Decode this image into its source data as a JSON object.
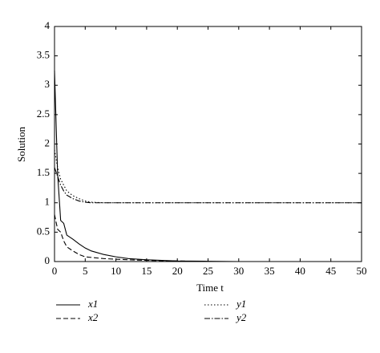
{
  "chart_data": {
    "type": "line",
    "xlabel": "Time t",
    "ylabel": "Solution",
    "x": [
      0,
      0.5,
      1,
      1.5,
      2,
      3,
      4,
      5,
      6,
      8,
      10,
      12,
      15,
      20,
      25,
      30,
      40,
      50
    ],
    "series": [
      {
        "name": "x1",
        "color": "#000000",
        "dash": "none",
        "values": [
          3.25,
          1.5,
          0.7,
          0.65,
          0.45,
          0.38,
          0.3,
          0.23,
          0.18,
          0.12,
          0.08,
          0.05,
          0.03,
          0.01,
          0.005,
          0,
          0,
          0
        ]
      },
      {
        "name": "y1",
        "color": "#000000",
        "dash": "1.5,2.5",
        "values": [
          1.9,
          1.6,
          1.4,
          1.3,
          1.2,
          1.12,
          1.07,
          1.03,
          1.01,
          1,
          1,
          1,
          1,
          1,
          1,
          1,
          1,
          1
        ]
      },
      {
        "name": "x2",
        "color": "#000000",
        "dash": "6,3",
        "values": [
          0.8,
          0.55,
          0.5,
          0.35,
          0.25,
          0.18,
          0.12,
          0.08,
          0.07,
          0.05,
          0.04,
          0.03,
          0.02,
          0.01,
          0,
          0,
          0,
          0
        ]
      },
      {
        "name": "y2",
        "color": "#000000",
        "dash": "7,2,1.5,2",
        "values": [
          1.6,
          1.45,
          1.3,
          1.2,
          1.13,
          1.07,
          1.03,
          1.01,
          1,
          1,
          1,
          1,
          1,
          1,
          1,
          1,
          1,
          1
        ]
      }
    ],
    "xlim": [
      0,
      50
    ],
    "xticks": [
      0,
      5,
      10,
      15,
      20,
      25,
      30,
      35,
      40,
      45,
      50
    ],
    "ylim": [
      0,
      4
    ],
    "yticks": [
      0,
      0.5,
      1,
      1.5,
      2,
      2.5,
      3,
      3.5,
      4
    ],
    "grid": false,
    "legend": "bottom"
  }
}
